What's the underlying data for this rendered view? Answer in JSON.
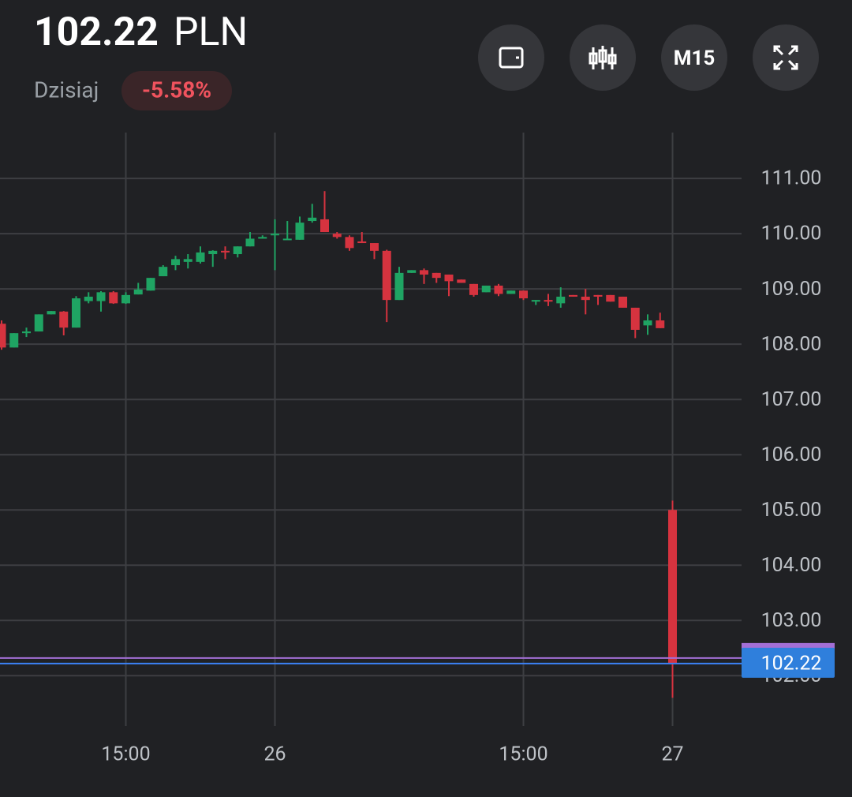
{
  "header": {
    "price": "102.22",
    "currency": "PLN",
    "period": "Dzisiaj",
    "change": "-5.58%",
    "timeframe": "M15"
  },
  "chart_data": {
    "type": "candlestick",
    "categories": [
      null,
      null,
      null,
      null,
      null,
      null,
      null,
      null,
      null,
      null,
      "15:00",
      null,
      null,
      null,
      null,
      null,
      null,
      null,
      null,
      null,
      null,
      null,
      "26",
      null,
      null,
      null,
      null,
      null,
      null,
      null,
      null,
      null,
      null,
      null,
      null,
      null,
      null,
      null,
      null,
      null,
      null,
      null,
      "15:00",
      null,
      null,
      null,
      null,
      null,
      null,
      null,
      null,
      null,
      null,
      null,
      "27"
    ],
    "open": [
      108.37,
      107.94,
      108.2,
      108.23,
      108.54,
      108.59,
      108.3,
      108.78,
      108.78,
      108.94,
      108.74,
      108.9,
      108.97,
      109.23,
      109.43,
      109.49,
      109.49,
      109.63,
      109.69,
      109.63,
      109.77,
      109.91,
      109.97,
      109.89,
      109.89,
      110.23,
      110.26,
      110.0,
      109.94,
      109.86,
      109.83,
      109.69,
      108.8,
      109.29,
      109.34,
      109.29,
      109.26,
      109.17,
      109.09,
      108.94,
      109.06,
      108.91,
      108.97,
      108.77,
      108.8,
      108.74,
      108.89,
      108.86,
      108.89,
      108.89,
      108.86,
      108.66,
      108.34,
      108.43,
      105.0
    ],
    "high": [
      108.43,
      108.2,
      108.3,
      108.54,
      108.6,
      108.6,
      108.87,
      108.94,
      108.96,
      108.96,
      108.94,
      109.11,
      109.2,
      109.43,
      109.6,
      109.63,
      109.77,
      109.7,
      109.77,
      109.77,
      110.03,
      109.97,
      110.26,
      110.23,
      110.31,
      110.54,
      110.77,
      110.03,
      109.97,
      110.03,
      109.83,
      109.71,
      109.4,
      109.34,
      109.37,
      109.29,
      109.26,
      109.17,
      109.09,
      109.06,
      109.09,
      108.97,
      108.97,
      108.8,
      108.91,
      109.03,
      108.89,
      109.0,
      108.89,
      108.89,
      108.86,
      108.66,
      108.54,
      108.57,
      105.17
    ],
    "low": [
      107.9,
      107.94,
      108.13,
      108.23,
      108.54,
      108.16,
      108.3,
      108.74,
      108.59,
      108.73,
      108.73,
      108.9,
      108.97,
      109.23,
      109.34,
      109.37,
      109.46,
      109.4,
      109.54,
      109.57,
      109.77,
      109.91,
      109.34,
      109.89,
      109.89,
      110.2,
      110.03,
      109.91,
      109.69,
      109.83,
      109.54,
      108.4,
      108.8,
      109.29,
      109.09,
      109.11,
      108.87,
      109.11,
      108.86,
      108.94,
      108.87,
      108.91,
      108.8,
      108.71,
      108.69,
      108.66,
      108.86,
      108.54,
      108.71,
      108.77,
      108.66,
      108.11,
      108.17,
      108.29,
      101.6
    ],
    "close": [
      107.94,
      108.2,
      108.23,
      108.54,
      108.6,
      108.3,
      108.83,
      108.86,
      108.94,
      108.74,
      108.89,
      108.99,
      109.2,
      109.4,
      109.54,
      109.54,
      109.66,
      109.69,
      109.66,
      109.77,
      109.91,
      109.94,
      110.0,
      109.91,
      110.2,
      110.29,
      110.03,
      109.94,
      109.74,
      109.83,
      109.69,
      108.8,
      109.29,
      109.34,
      109.26,
      109.2,
      109.14,
      109.11,
      108.89,
      109.06,
      108.91,
      108.97,
      108.83,
      108.8,
      108.77,
      108.86,
      108.86,
      108.8,
      108.86,
      108.77,
      108.66,
      108.26,
      108.43,
      108.29,
      102.22
    ],
    "up_color": "#1fa463",
    "down_color": "#d6333f",
    "ylim": [
      101.09,
      111.83
    ],
    "yticks": [
      {
        "value": 102,
        "label": "102.00"
      },
      {
        "value": 103,
        "label": "103.00"
      },
      {
        "value": 104,
        "label": "104.00"
      },
      {
        "value": 105,
        "label": "105.00"
      },
      {
        "value": 106,
        "label": "106.00"
      },
      {
        "value": 107,
        "label": "107.00"
      },
      {
        "value": 108,
        "label": "108.00"
      },
      {
        "value": 109,
        "label": "109.00"
      },
      {
        "value": 110,
        "label": "110.00"
      },
      {
        "value": 111,
        "label": "111.00"
      }
    ],
    "grid": true,
    "price_lines": [
      {
        "value": 102.32,
        "color": "#a36fd6"
      },
      {
        "value": 102.22,
        "color": "#3b82f6"
      }
    ],
    "last_price": 102.22
  }
}
